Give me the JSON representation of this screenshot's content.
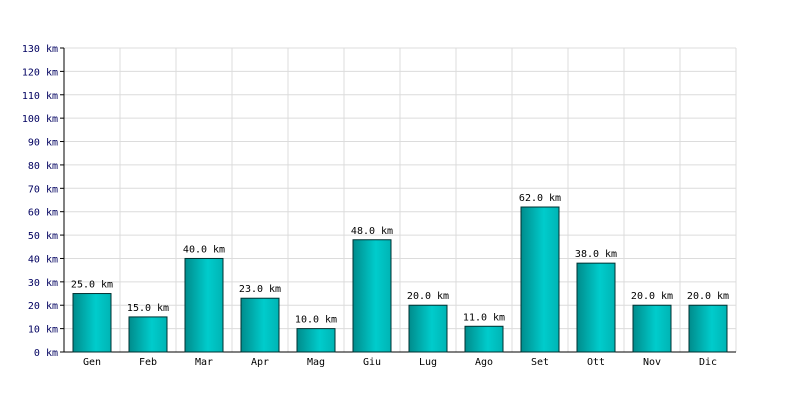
{
  "chart_data": {
    "type": "bar",
    "categories": [
      "Gen",
      "Feb",
      "Mar",
      "Apr",
      "Mag",
      "Giu",
      "Lug",
      "Ago",
      "Set",
      "Ott",
      "Nov",
      "Dic"
    ],
    "values": [
      25,
      15,
      40,
      23,
      10,
      48,
      20,
      11,
      62,
      38,
      20,
      20
    ],
    "value_labels": [
      "25.0 km",
      "15.0 km",
      "40.0 km",
      "23.0 km",
      "10.0 km",
      "48.0 km",
      "20.0 km",
      "11.0 km",
      "62.0 km",
      "38.0 km",
      "20.0 km",
      "20.0 km"
    ],
    "color": "#00cccc",
    "ylim": [
      0,
      130
    ],
    "yticks": [
      {
        "value": 0,
        "label": "0 km"
      },
      {
        "value": 10,
        "label": "10 km"
      },
      {
        "value": 20,
        "label": "20 km"
      },
      {
        "value": 30,
        "label": "30 km"
      },
      {
        "value": 40,
        "label": "40 km"
      },
      {
        "value": 50,
        "label": "50 km"
      },
      {
        "value": 60,
        "label": "60 km"
      },
      {
        "value": 70,
        "label": "70 km"
      },
      {
        "value": 80,
        "label": "80 km"
      },
      {
        "value": 90,
        "label": "90 km"
      },
      {
        "value": 100,
        "label": "100 km"
      },
      {
        "value": 110,
        "label": "110 km"
      },
      {
        "value": 120,
        "label": "120 km"
      },
      {
        "value": 130,
        "label": "130 km"
      }
    ],
    "grid": true
  }
}
